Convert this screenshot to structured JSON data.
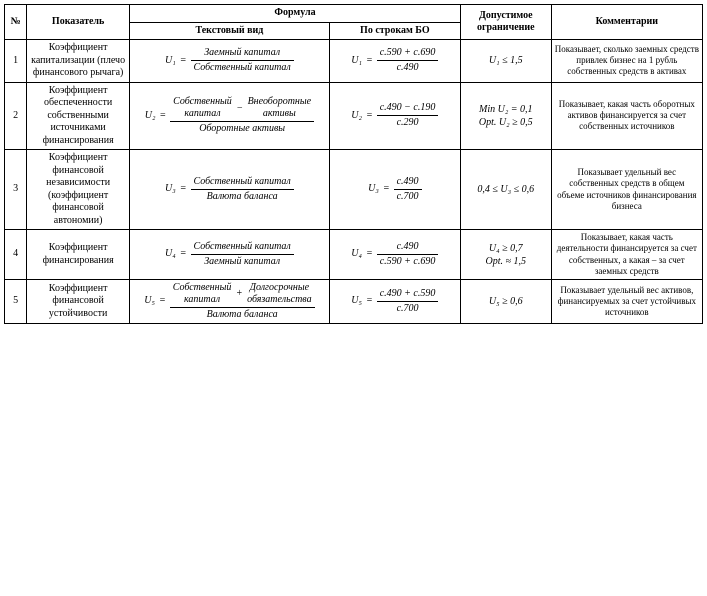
{
  "headers": {
    "num": "№",
    "indicator": "Показатель",
    "formula": "Формула",
    "formula_text": "Текстовый вид",
    "formula_bo": "По строкам БО",
    "limit": "Допустимое ограничение",
    "comment": "Комментарии"
  },
  "rows": [
    {
      "n": "1",
      "indicator": "Коэффициент капитализации (плечо финансового рычага)",
      "var": "U₁",
      "text_num": "Заемный капитал",
      "text_den": "Собственный капитал",
      "bo_num": "c.590 + c.690",
      "bo_den": "c.490",
      "limit": "U₁ ≤ 1,5",
      "comment": "Показывает, сколько заемных средств привлек бизнес на 1 рубль собственных средств в активах"
    },
    {
      "n": "2",
      "indicator": "Коэффициент обеспеченности собственными источниками финансирования",
      "var": "U₂",
      "text_num1_top": "Собственный",
      "text_num1_bot": "капитал",
      "text_minus": "−",
      "text_num2_top": "Внеоборотные",
      "text_num2_bot": "активы",
      "text_den": "Оборотные активы",
      "bo_num": "c.490 − c.190",
      "bo_den": "c.290",
      "limit1": "Min U₂ = 0,1",
      "limit2": "Opt. U₂ ≥ 0,5",
      "comment": "Показывает, какая часть оборотных активов финансируется за счет собственных источников"
    },
    {
      "n": "3",
      "indicator": "Коэффициент финансовой независимости (коэффициент финансовой автономии)",
      "var": "U₃",
      "text_num": "Собственный капитал",
      "text_den": "Валюта баланса",
      "bo_num": "c.490",
      "bo_den": "c.700",
      "limit": "0,4 ≤ U₃ ≤ 0,6",
      "comment": "Показывает удельный вес собственных средств в общем объеме источников финансирования бизнеса"
    },
    {
      "n": "4",
      "indicator": "Коэффициент финансирования",
      "var": "U₄",
      "text_num": "Собственный капитал",
      "text_den": "Заемный капитал",
      "bo_num": "c.490",
      "bo_den": "c.590 + c.690",
      "limit1": "U₄ ≥ 0,7",
      "limit2": "Opt. ≈ 1,5",
      "comment": "Показывает, какая часть деятельности финансируется за счет собственных, а какая – за счет заемных средств"
    },
    {
      "n": "5",
      "indicator": "Коэффициент финансовой устойчивости",
      "var": "U₅",
      "text_num1_top": "Собственный",
      "text_num1_bot": "капитал",
      "text_plus": "+",
      "text_num2_top": "Долгосрочные",
      "text_num2_bot": "обязательства",
      "text_den": "Валюта баланса",
      "bo_num": "c.490 + c.590",
      "bo_den": "c.700",
      "limit": "U₅ ≥ 0,6",
      "comment": "Показывает удельный вес активов, финансируемых за счет устойчивых источников"
    }
  ],
  "style": {
    "font_family": "Times New Roman",
    "font_size_pt": 10,
    "border_color": "#000000",
    "background": "#ffffff"
  }
}
